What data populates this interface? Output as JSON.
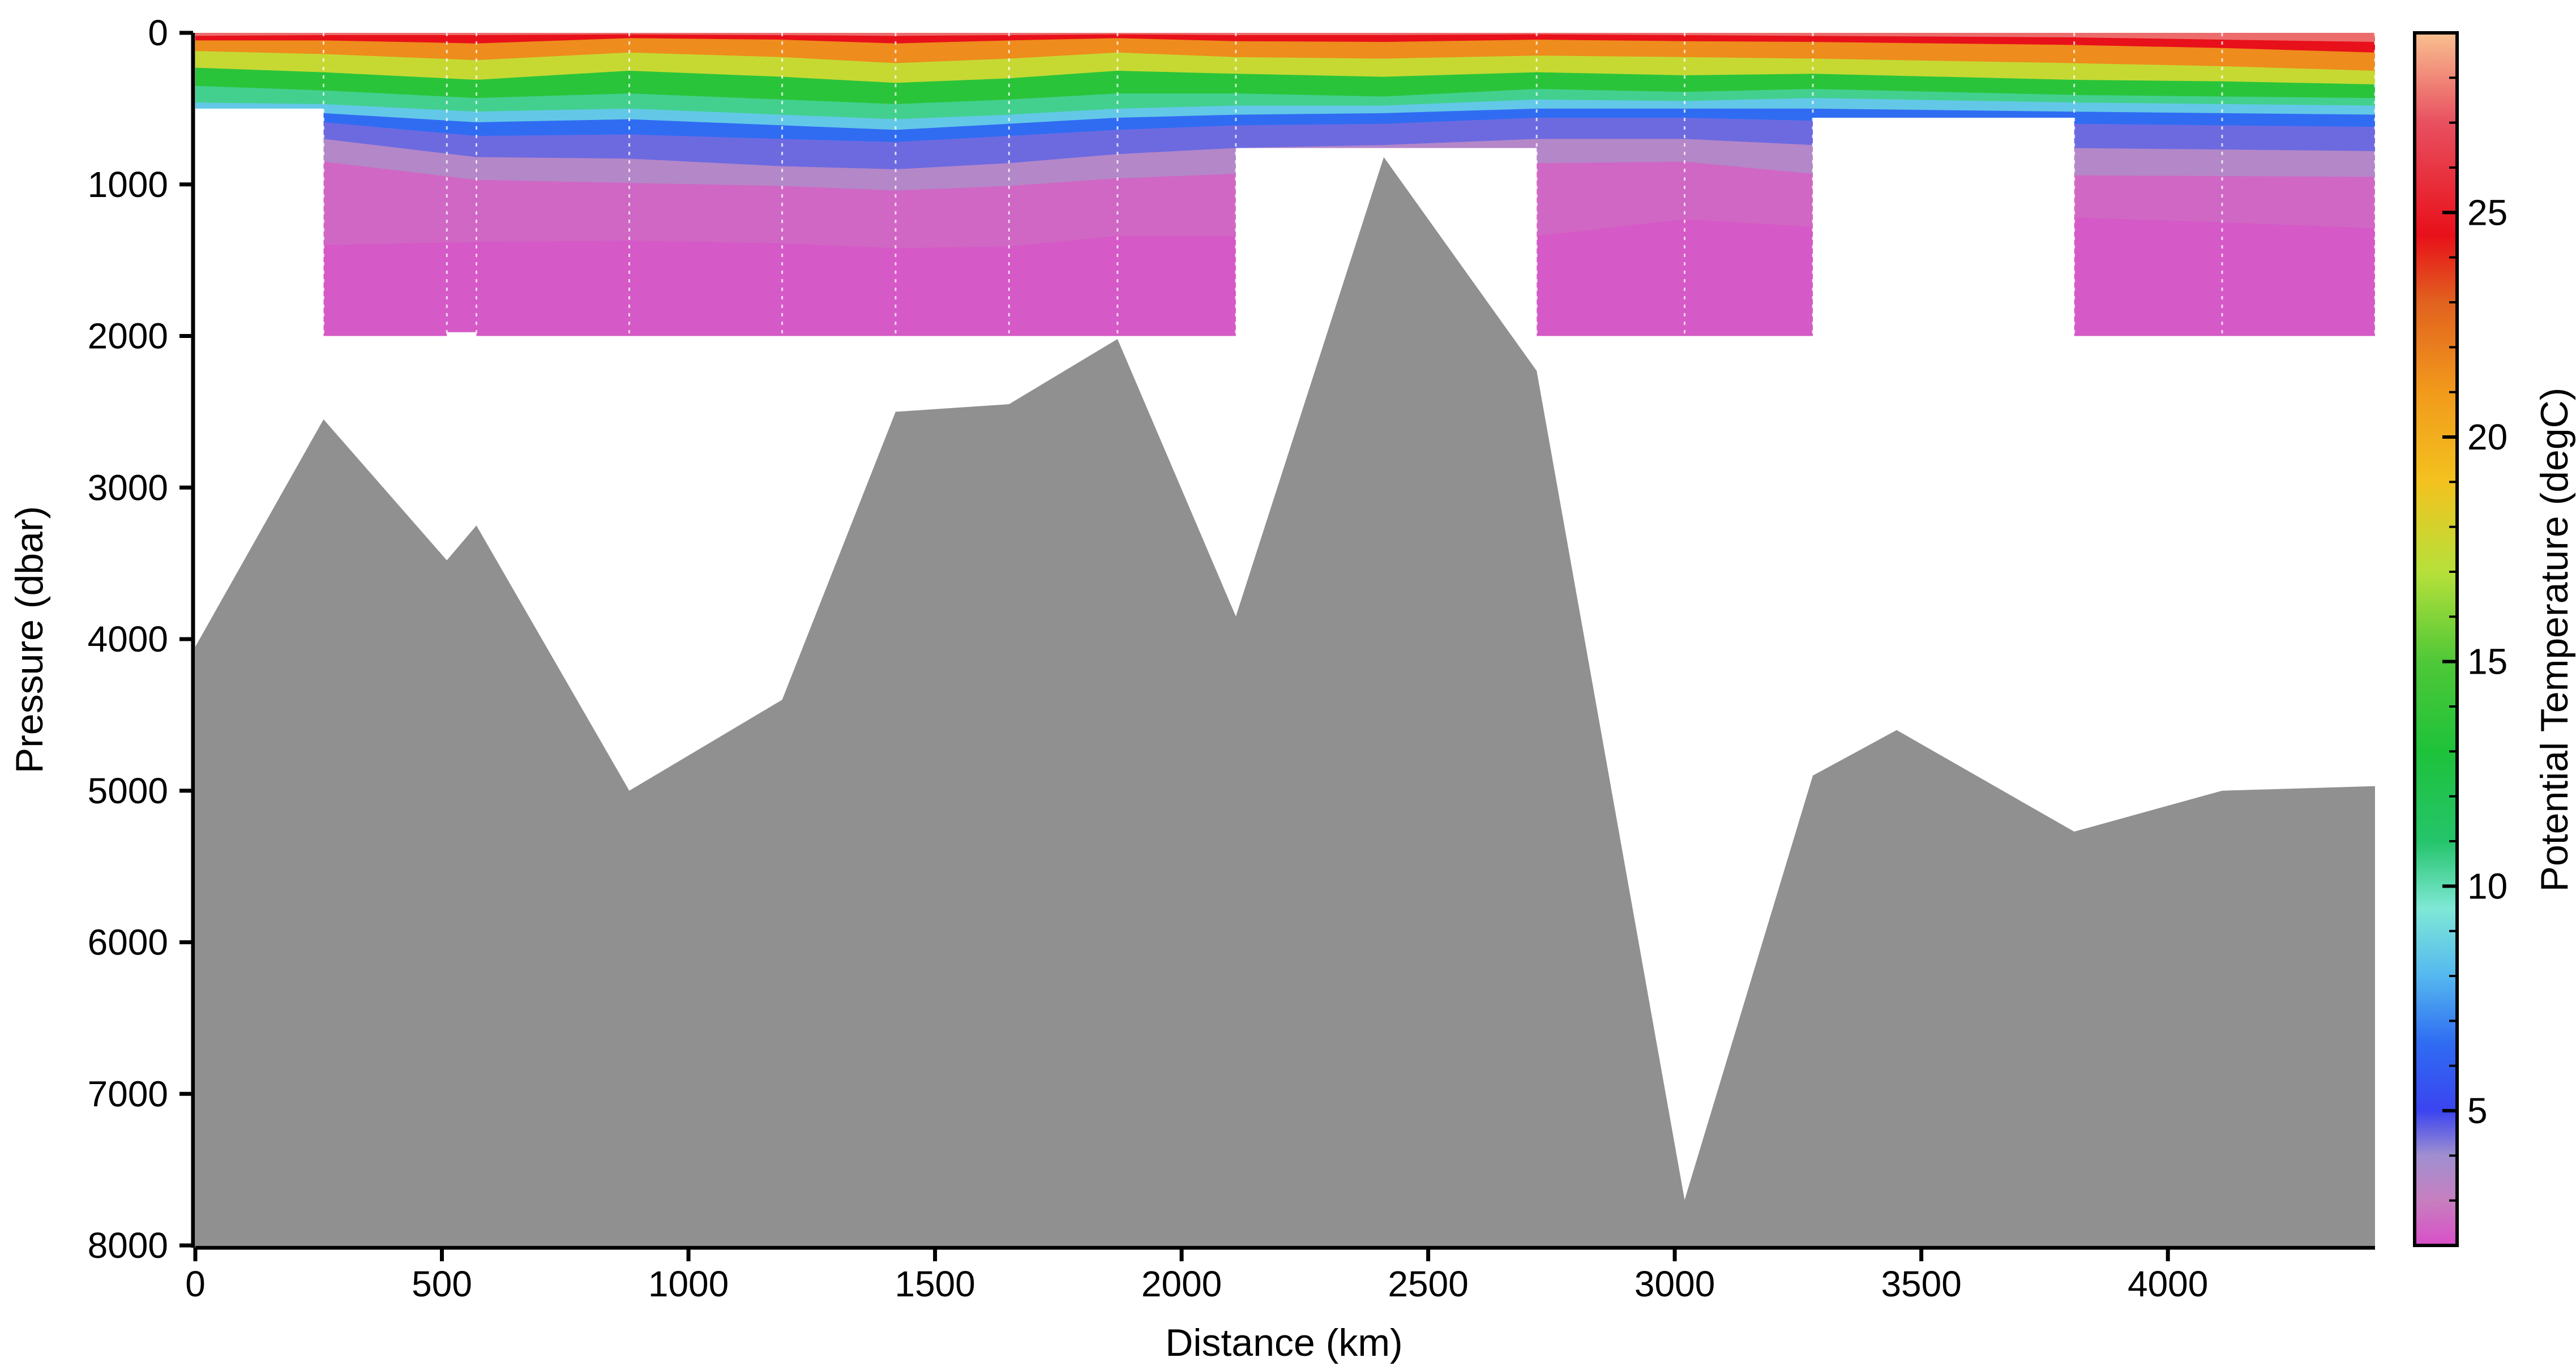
{
  "chart_data": {
    "type": "section",
    "xlabel": "Distance (km)",
    "ylabel": "Pressure (dbar)",
    "colorbar_label": "Potential Temperature (degC)",
    "xlim": [
      0,
      4420
    ],
    "ylim": [
      8000,
      0
    ],
    "x_ticks": [
      "0",
      "500",
      "1000",
      "1500",
      "2000",
      "2500",
      "3000",
      "3500",
      "4000"
    ],
    "y_ticks": [
      "0",
      "1000",
      "2000",
      "3000",
      "4000",
      "5000",
      "6000",
      "7000",
      "8000"
    ],
    "colorbar_range": [
      2,
      29
    ],
    "colorbar_ticks": [
      "5",
      "10",
      "15",
      "20",
      "25"
    ],
    "colorbar_stops": [
      {
        "t": 2,
        "color": "#d94fc8"
      },
      {
        "t": 3,
        "color": "#c77fbf"
      },
      {
        "t": 4,
        "color": "#a08fd0"
      },
      {
        "t": 5,
        "color": "#3a44f0"
      },
      {
        "t": 6.5,
        "color": "#2f6cf2"
      },
      {
        "t": 8,
        "color": "#55b8f0"
      },
      {
        "t": 9.5,
        "color": "#7fe8d6"
      },
      {
        "t": 11,
        "color": "#25c46b"
      },
      {
        "t": 13,
        "color": "#1ec23a"
      },
      {
        "t": 15,
        "color": "#4fc838"
      },
      {
        "t": 17,
        "color": "#b7e03a"
      },
      {
        "t": 19,
        "color": "#f3c21f"
      },
      {
        "t": 21,
        "color": "#f29a1c"
      },
      {
        "t": 23,
        "color": "#e1621f"
      },
      {
        "t": 24.5,
        "color": "#e8101a"
      },
      {
        "t": 27,
        "color": "#e85060"
      },
      {
        "t": 29,
        "color": "#f9c090"
      }
    ],
    "bathymetry_color": "#909090",
    "bathymetry": {
      "x": [
        0,
        260,
        510,
        570,
        880,
        1190,
        1420,
        1650,
        1870,
        2110,
        2410,
        2720,
        3020,
        3280,
        3450,
        3810,
        4110,
        4420
      ],
      "y": [
        4050,
        2550,
        3480,
        3250,
        5000,
        4400,
        2500,
        2450,
        2020,
        3850,
        820,
        2230,
        7700,
        4900,
        4600,
        5270,
        5000,
        4970
      ]
    },
    "station_x": [
      260,
      510,
      570,
      880,
      1190,
      1420,
      1650,
      1870,
      2110,
      2720,
      3020,
      3280,
      3810,
      4110,
      4420
    ],
    "panels": [
      {
        "x": [
          0,
          260
        ],
        "bottom": 500
      },
      {
        "x": [
          260,
          510
        ],
        "bottom": 2000
      },
      {
        "x": [
          510,
          2110
        ],
        "bottom": 2000
      },
      {
        "x": [
          2110,
          2720
        ],
        "bottom": 760
      },
      {
        "x": [
          2720,
          3280
        ],
        "bottom": 2000
      },
      {
        "x": [
          3280,
          3810
        ],
        "bottom": 560
      },
      {
        "x": [
          3810,
          4420
        ],
        "bottom": 2000
      }
    ],
    "isotherms": {
      "temperatures": [
        28,
        25,
        22,
        18,
        14,
        11,
        9,
        7,
        5,
        4,
        3
      ],
      "x": [
        0,
        260,
        570,
        880,
        1190,
        1420,
        1650,
        1870,
        2110,
        2410,
        2720,
        3020,
        3280,
        3810,
        4110,
        4420
      ],
      "depths": [
        [
          20,
          15,
          15,
          10,
          15,
          20,
          15,
          10,
          15,
          15,
          10,
          15,
          20,
          30,
          45,
          60
        ],
        [
          50,
          50,
          70,
          35,
          45,
          70,
          50,
          35,
          55,
          60,
          45,
          55,
          60,
          80,
          100,
          130
        ],
        [
          120,
          140,
          180,
          130,
          160,
          200,
          170,
          130,
          160,
          170,
          150,
          160,
          170,
          200,
          220,
          250
        ],
        [
          230,
          260,
          310,
          250,
          290,
          330,
          300,
          250,
          270,
          290,
          260,
          280,
          270,
          310,
          320,
          340
        ],
        [
          350,
          380,
          430,
          400,
          440,
          470,
          440,
          400,
          400,
          420,
          370,
          390,
          370,
          410,
          420,
          430
        ],
        [
          460,
          470,
          520,
          500,
          540,
          570,
          540,
          500,
          480,
          480,
          440,
          450,
          430,
          460,
          470,
          480
        ],
        [
          510,
          530,
          590,
          570,
          610,
          640,
          600,
          560,
          540,
          530,
          500,
          500,
          500,
          520,
          530,
          540
        ],
        [
          560,
          590,
          680,
          670,
          700,
          720,
          680,
          640,
          610,
          600,
          560,
          560,
          580,
          600,
          610,
          620
        ],
        [
          640,
          700,
          820,
          830,
          880,
          900,
          860,
          800,
          760,
          740,
          700,
          700,
          740,
          760,
          770,
          780
        ],
        [
          800,
          850,
          970,
          990,
          1010,
          1040,
          1010,
          960,
          930,
          900,
          860,
          850,
          930,
          940,
          945,
          950
        ],
        [
          1200,
          1400,
          1380,
          1370,
          1390,
          1420,
          1410,
          1340,
          1340,
          1360,
          1340,
          1230,
          1280,
          1220,
          1250,
          1290
        ]
      ]
    }
  }
}
